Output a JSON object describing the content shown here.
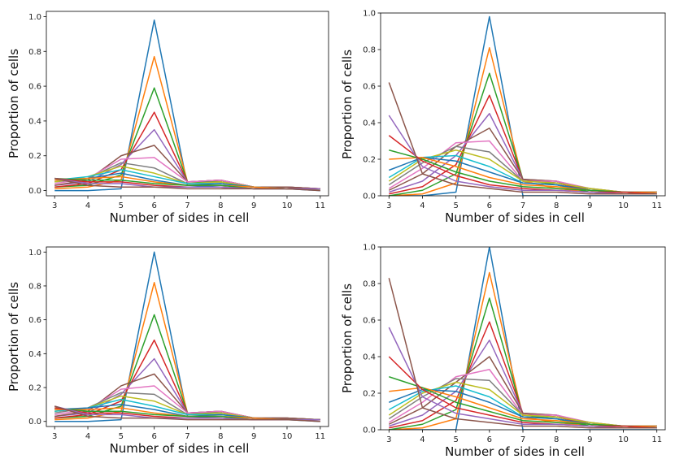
{
  "chart_data": [
    {
      "type": "line",
      "title": "",
      "xlabel": "Number of sides in cell",
      "ylabel": "Proportion of cells",
      "x": [
        3,
        4,
        5,
        6,
        7,
        8,
        9,
        10,
        11
      ],
      "xticks": [
        "3",
        "4",
        "5",
        "6",
        "7",
        "8",
        "9",
        "10",
        "11"
      ],
      "yticks": [
        "0.0",
        "0.2",
        "0.4",
        "0.6",
        "0.8",
        "1.0"
      ],
      "xlim": [
        2.75,
        11.25
      ],
      "ylim": [
        -0.03,
        1.03
      ],
      "series": [
        {
          "name": "s1",
          "color": "#1f77b4",
          "values": [
            0.0,
            0.0,
            0.01,
            0.98,
            0.03,
            0.02,
            0.01,
            0.01,
            0.0
          ]
        },
        {
          "name": "s2",
          "color": "#ff7f0e",
          "values": [
            0.01,
            0.02,
            0.06,
            0.77,
            0.05,
            0.05,
            0.02,
            0.01,
            0.01
          ]
        },
        {
          "name": "s3",
          "color": "#2ca02c",
          "values": [
            0.02,
            0.03,
            0.09,
            0.59,
            0.05,
            0.05,
            0.02,
            0.02,
            0.01
          ]
        },
        {
          "name": "s4",
          "color": "#d62728",
          "values": [
            0.02,
            0.04,
            0.12,
            0.45,
            0.05,
            0.06,
            0.02,
            0.02,
            0.01
          ]
        },
        {
          "name": "s5",
          "color": "#9467bd",
          "values": [
            0.03,
            0.05,
            0.15,
            0.35,
            0.05,
            0.06,
            0.02,
            0.02,
            0.01
          ]
        },
        {
          "name": "s6",
          "color": "#8c564b",
          "values": [
            0.03,
            0.06,
            0.2,
            0.26,
            0.05,
            0.06,
            0.02,
            0.02,
            0.01
          ]
        },
        {
          "name": "s7",
          "color": "#e377c2",
          "values": [
            0.04,
            0.07,
            0.18,
            0.19,
            0.05,
            0.06,
            0.02,
            0.01,
            0.01
          ]
        },
        {
          "name": "s8",
          "color": "#7f7f7f",
          "values": [
            0.05,
            0.07,
            0.16,
            0.13,
            0.04,
            0.05,
            0.02,
            0.01,
            0.01
          ]
        },
        {
          "name": "s9",
          "color": "#bcbd22",
          "values": [
            0.05,
            0.08,
            0.14,
            0.1,
            0.04,
            0.05,
            0.02,
            0.01,
            0.01
          ]
        },
        {
          "name": "s10",
          "color": "#17becf",
          "values": [
            0.06,
            0.08,
            0.12,
            0.08,
            0.04,
            0.04,
            0.02,
            0.01,
            0.01
          ]
        },
        {
          "name": "s11",
          "color": "#1f77b4",
          "values": [
            0.06,
            0.07,
            0.1,
            0.06,
            0.03,
            0.04,
            0.02,
            0.01,
            0.01
          ]
        },
        {
          "name": "s12",
          "color": "#ff7f0e",
          "values": [
            0.06,
            0.07,
            0.08,
            0.05,
            0.03,
            0.03,
            0.02,
            0.01,
            0.01
          ]
        },
        {
          "name": "s13",
          "color": "#2ca02c",
          "values": [
            0.07,
            0.06,
            0.06,
            0.04,
            0.03,
            0.03,
            0.01,
            0.01,
            0.01
          ]
        },
        {
          "name": "s14",
          "color": "#d62728",
          "values": [
            0.07,
            0.05,
            0.05,
            0.03,
            0.02,
            0.02,
            0.01,
            0.01,
            0.01
          ]
        },
        {
          "name": "s15",
          "color": "#9467bd",
          "values": [
            0.07,
            0.04,
            0.04,
            0.02,
            0.02,
            0.02,
            0.01,
            0.01,
            0.01
          ]
        },
        {
          "name": "s16",
          "color": "#8c564b",
          "values": [
            0.07,
            0.03,
            0.02,
            0.02,
            0.01,
            0.01,
            0.01,
            0.01,
            0.0
          ]
        }
      ]
    },
    {
      "type": "line",
      "title": "",
      "xlabel": "Number of sides in cell",
      "ylabel": "Proportion of cells",
      "x": [
        3,
        4,
        5,
        6,
        7,
        8,
        9,
        10,
        11
      ],
      "xticks": [
        "3",
        "4",
        "5",
        "6",
        "7",
        "8",
        "9",
        "10",
        "11"
      ],
      "yticks": [
        "0.0",
        "0.2",
        "0.4",
        "0.6",
        "0.8",
        "1.0"
      ],
      "xlim": [
        2.75,
        11.25
      ],
      "ylim": [
        0,
        1.0
      ],
      "series": [
        {
          "name": "s1",
          "color": "#1f77b4",
          "values": [
            0.0,
            0.0,
            0.02,
            0.98,
            0.0,
            0.0,
            0.0,
            0.0,
            0.0
          ]
        },
        {
          "name": "s2",
          "color": "#ff7f0e",
          "values": [
            0.0,
            0.01,
            0.07,
            0.81,
            0.08,
            0.04,
            0.02,
            0.01,
            0.01
          ]
        },
        {
          "name": "s3",
          "color": "#2ca02c",
          "values": [
            0.0,
            0.03,
            0.12,
            0.67,
            0.09,
            0.06,
            0.02,
            0.01,
            0.01
          ]
        },
        {
          "name": "s4",
          "color": "#d62728",
          "values": [
            0.01,
            0.05,
            0.17,
            0.55,
            0.09,
            0.07,
            0.03,
            0.02,
            0.01
          ]
        },
        {
          "name": "s5",
          "color": "#9467bd",
          "values": [
            0.02,
            0.08,
            0.22,
            0.45,
            0.09,
            0.08,
            0.03,
            0.02,
            0.01
          ]
        },
        {
          "name": "s6",
          "color": "#8c564b",
          "values": [
            0.03,
            0.12,
            0.27,
            0.37,
            0.09,
            0.08,
            0.03,
            0.02,
            0.01
          ]
        },
        {
          "name": "s7",
          "color": "#e377c2",
          "values": [
            0.04,
            0.15,
            0.29,
            0.3,
            0.08,
            0.08,
            0.04,
            0.02,
            0.02
          ]
        },
        {
          "name": "s8",
          "color": "#7f7f7f",
          "values": [
            0.06,
            0.18,
            0.27,
            0.24,
            0.08,
            0.07,
            0.04,
            0.02,
            0.02
          ]
        },
        {
          "name": "s9",
          "color": "#bcbd22",
          "values": [
            0.08,
            0.2,
            0.25,
            0.2,
            0.08,
            0.07,
            0.04,
            0.02,
            0.02
          ]
        },
        {
          "name": "s10",
          "color": "#17becf",
          "values": [
            0.1,
            0.21,
            0.22,
            0.16,
            0.07,
            0.06,
            0.03,
            0.02,
            0.02
          ]
        },
        {
          "name": "s11",
          "color": "#1f77b4",
          "values": [
            0.14,
            0.21,
            0.19,
            0.13,
            0.07,
            0.06,
            0.03,
            0.02,
            0.02
          ]
        },
        {
          "name": "s12",
          "color": "#ff7f0e",
          "values": [
            0.2,
            0.21,
            0.16,
            0.1,
            0.06,
            0.05,
            0.03,
            0.02,
            0.02
          ]
        },
        {
          "name": "s13",
          "color": "#2ca02c",
          "values": [
            0.25,
            0.2,
            0.13,
            0.08,
            0.05,
            0.04,
            0.03,
            0.02,
            0.01
          ]
        },
        {
          "name": "s14",
          "color": "#d62728",
          "values": [
            0.33,
            0.19,
            0.11,
            0.06,
            0.04,
            0.03,
            0.02,
            0.02,
            0.01
          ]
        },
        {
          "name": "s15",
          "color": "#9467bd",
          "values": [
            0.44,
            0.16,
            0.08,
            0.05,
            0.03,
            0.03,
            0.02,
            0.01,
            0.01
          ]
        },
        {
          "name": "s16",
          "color": "#8c564b",
          "values": [
            0.62,
            0.12,
            0.06,
            0.04,
            0.02,
            0.02,
            0.01,
            0.01,
            0.01
          ]
        }
      ]
    },
    {
      "type": "line",
      "title": "",
      "xlabel": "Number of sides in cell",
      "ylabel": "Proportion of cells",
      "x": [
        3,
        4,
        5,
        6,
        7,
        8,
        9,
        10,
        11
      ],
      "xticks": [
        "3",
        "4",
        "5",
        "6",
        "7",
        "8",
        "9",
        "10",
        "11"
      ],
      "yticks": [
        "0.0",
        "0.2",
        "0.4",
        "0.6",
        "0.8",
        "1.0"
      ],
      "xlim": [
        2.75,
        11.25
      ],
      "ylim": [
        -0.03,
        1.03
      ],
      "series": [
        {
          "name": "s1",
          "color": "#1f77b4",
          "values": [
            0.0,
            0.0,
            0.01,
            1.0,
            0.03,
            0.02,
            0.01,
            0.01,
            0.0
          ]
        },
        {
          "name": "s2",
          "color": "#ff7f0e",
          "values": [
            0.01,
            0.02,
            0.06,
            0.82,
            0.05,
            0.05,
            0.02,
            0.01,
            0.01
          ]
        },
        {
          "name": "s3",
          "color": "#2ca02c",
          "values": [
            0.02,
            0.03,
            0.09,
            0.63,
            0.05,
            0.05,
            0.02,
            0.02,
            0.01
          ]
        },
        {
          "name": "s4",
          "color": "#d62728",
          "values": [
            0.02,
            0.04,
            0.12,
            0.48,
            0.05,
            0.06,
            0.02,
            0.02,
            0.01
          ]
        },
        {
          "name": "s5",
          "color": "#9467bd",
          "values": [
            0.03,
            0.05,
            0.16,
            0.37,
            0.05,
            0.06,
            0.02,
            0.02,
            0.01
          ]
        },
        {
          "name": "s6",
          "color": "#8c564b",
          "values": [
            0.03,
            0.06,
            0.21,
            0.28,
            0.05,
            0.06,
            0.02,
            0.02,
            0.01
          ]
        },
        {
          "name": "s7",
          "color": "#e377c2",
          "values": [
            0.04,
            0.07,
            0.19,
            0.21,
            0.05,
            0.06,
            0.02,
            0.01,
            0.01
          ]
        },
        {
          "name": "s8",
          "color": "#7f7f7f",
          "values": [
            0.05,
            0.08,
            0.17,
            0.16,
            0.04,
            0.05,
            0.02,
            0.01,
            0.01
          ]
        },
        {
          "name": "s9",
          "color": "#bcbd22",
          "values": [
            0.06,
            0.08,
            0.15,
            0.12,
            0.04,
            0.05,
            0.02,
            0.01,
            0.01
          ]
        },
        {
          "name": "s10",
          "color": "#17becf",
          "values": [
            0.06,
            0.08,
            0.13,
            0.09,
            0.04,
            0.04,
            0.02,
            0.01,
            0.01
          ]
        },
        {
          "name": "s11",
          "color": "#1f77b4",
          "values": [
            0.07,
            0.08,
            0.1,
            0.07,
            0.03,
            0.04,
            0.02,
            0.01,
            0.01
          ]
        },
        {
          "name": "s12",
          "color": "#ff7f0e",
          "values": [
            0.07,
            0.07,
            0.08,
            0.05,
            0.03,
            0.03,
            0.02,
            0.01,
            0.01
          ]
        },
        {
          "name": "s13",
          "color": "#2ca02c",
          "values": [
            0.08,
            0.06,
            0.06,
            0.04,
            0.03,
            0.03,
            0.01,
            0.01,
            0.01
          ]
        },
        {
          "name": "s14",
          "color": "#d62728",
          "values": [
            0.08,
            0.05,
            0.05,
            0.03,
            0.02,
            0.02,
            0.01,
            0.01,
            0.01
          ]
        },
        {
          "name": "s15",
          "color": "#9467bd",
          "values": [
            0.09,
            0.04,
            0.04,
            0.02,
            0.02,
            0.02,
            0.01,
            0.01,
            0.01
          ]
        },
        {
          "name": "s16",
          "color": "#8c564b",
          "values": [
            0.09,
            0.03,
            0.02,
            0.02,
            0.01,
            0.01,
            0.01,
            0.01,
            0.0
          ]
        }
      ]
    },
    {
      "type": "line",
      "title": "",
      "xlabel": "Number of sides in cell",
      "ylabel": "Proportion of cells",
      "x": [
        3,
        4,
        5,
        6,
        7,
        8,
        9,
        10,
        11
      ],
      "xticks": [
        "3",
        "4",
        "5",
        "6",
        "7",
        "8",
        "9",
        "10",
        "11"
      ],
      "yticks": [
        "0.0",
        "0.2",
        "0.4",
        "0.6",
        "0.8",
        "1.0"
      ],
      "xlim": [
        2.75,
        11.25
      ],
      "ylim": [
        0,
        1.0
      ],
      "series": [
        {
          "name": "s1",
          "color": "#1f77b4",
          "values": [
            0.0,
            0.0,
            0.0,
            1.0,
            0.0,
            0.0,
            0.0,
            0.0,
            0.0
          ]
        },
        {
          "name": "s2",
          "color": "#ff7f0e",
          "values": [
            0.0,
            0.01,
            0.06,
            0.86,
            0.07,
            0.04,
            0.02,
            0.01,
            0.01
          ]
        },
        {
          "name": "s3",
          "color": "#2ca02c",
          "values": [
            0.0,
            0.03,
            0.11,
            0.72,
            0.08,
            0.06,
            0.02,
            0.01,
            0.01
          ]
        },
        {
          "name": "s4",
          "color": "#d62728",
          "values": [
            0.01,
            0.05,
            0.16,
            0.59,
            0.09,
            0.07,
            0.03,
            0.02,
            0.01
          ]
        },
        {
          "name": "s5",
          "color": "#9467bd",
          "values": [
            0.02,
            0.08,
            0.21,
            0.49,
            0.09,
            0.08,
            0.03,
            0.02,
            0.01
          ]
        },
        {
          "name": "s6",
          "color": "#8c564b",
          "values": [
            0.03,
            0.12,
            0.26,
            0.4,
            0.09,
            0.08,
            0.03,
            0.02,
            0.01
          ]
        },
        {
          "name": "s7",
          "color": "#e377c2",
          "values": [
            0.04,
            0.15,
            0.29,
            0.33,
            0.08,
            0.08,
            0.04,
            0.02,
            0.02
          ]
        },
        {
          "name": "s8",
          "color": "#7f7f7f",
          "values": [
            0.06,
            0.18,
            0.28,
            0.27,
            0.08,
            0.07,
            0.04,
            0.02,
            0.02
          ]
        },
        {
          "name": "s9",
          "color": "#bcbd22",
          "values": [
            0.08,
            0.2,
            0.26,
            0.22,
            0.08,
            0.07,
            0.04,
            0.02,
            0.02
          ]
        },
        {
          "name": "s10",
          "color": "#17becf",
          "values": [
            0.11,
            0.21,
            0.24,
            0.18,
            0.07,
            0.06,
            0.03,
            0.02,
            0.02
          ]
        },
        {
          "name": "s11",
          "color": "#1f77b4",
          "values": [
            0.15,
            0.22,
            0.21,
            0.15,
            0.07,
            0.06,
            0.03,
            0.02,
            0.02
          ]
        },
        {
          "name": "s12",
          "color": "#ff7f0e",
          "values": [
            0.21,
            0.23,
            0.18,
            0.12,
            0.06,
            0.05,
            0.03,
            0.02,
            0.02
          ]
        },
        {
          "name": "s13",
          "color": "#2ca02c",
          "values": [
            0.29,
            0.23,
            0.15,
            0.1,
            0.05,
            0.04,
            0.03,
            0.02,
            0.01
          ]
        },
        {
          "name": "s14",
          "color": "#d62728",
          "values": [
            0.4,
            0.22,
            0.12,
            0.08,
            0.04,
            0.03,
            0.02,
            0.02,
            0.01
          ]
        },
        {
          "name": "s15",
          "color": "#9467bd",
          "values": [
            0.56,
            0.18,
            0.09,
            0.06,
            0.03,
            0.03,
            0.02,
            0.01,
            0.01
          ]
        },
        {
          "name": "s16",
          "color": "#8c564b",
          "values": [
            0.83,
            0.12,
            0.06,
            0.04,
            0.02,
            0.02,
            0.01,
            0.01,
            0.01
          ]
        }
      ]
    }
  ]
}
